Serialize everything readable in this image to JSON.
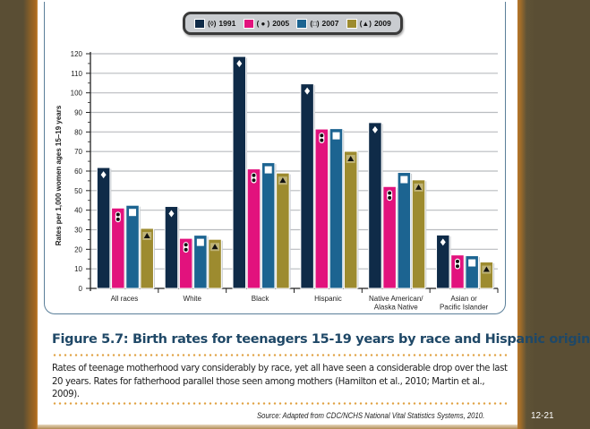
{
  "legend": [
    {
      "marker": "◊",
      "label": "1991",
      "color": "#0f2b48"
    },
    {
      "marker": "⁚",
      "label": "2005",
      "color": "#e2127d"
    },
    {
      "marker": "□",
      "label": "2007",
      "color": "#1c6491"
    },
    {
      "marker": "▲",
      "label": "2009",
      "color": "#9d8b2f"
    }
  ],
  "chart_data": {
    "type": "bar",
    "title": "",
    "xlabel": "",
    "ylabel": "Rates per 1,000 women ages 15–19 years",
    "ylim": [
      0,
      120
    ],
    "yticks": [
      0,
      10,
      20,
      30,
      40,
      50,
      60,
      70,
      80,
      90,
      100,
      110,
      120
    ],
    "grid": true,
    "legend_position": "top-center",
    "categories": [
      "All races",
      "White",
      "Black",
      "Hispanic",
      "Native American/\nAlaska Native",
      "Asian or\nPacific Islander"
    ],
    "series": [
      {
        "name": "1991",
        "marker": "diamond",
        "color": "#0f2b48",
        "values": [
          61.8,
          41.9,
          118.6,
          104.6,
          84.8,
          27.3
        ]
      },
      {
        "name": "2005",
        "marker": "two-dots",
        "color": "#e2127d",
        "values": [
          41.1,
          25.6,
          61.1,
          81.5,
          52.1,
          17.1
        ]
      },
      {
        "name": "2007",
        "marker": "square",
        "color": "#1c6491",
        "values": [
          42.5,
          27.2,
          64.3,
          81.7,
          59.3,
          16.7
        ]
      },
      {
        "name": "2009",
        "marker": "triangle",
        "color": "#9d8b2f",
        "values": [
          30.7,
          25.1,
          59.0,
          70.1,
          55.5,
          13.5
        ]
      }
    ]
  },
  "figure": {
    "title": "Figure 5.7: Birth rates for teenagers 15-19 years by race and Hispanic origin",
    "caption": "Rates of teenage motherhood vary considerably by race, yet all have seen a considerable drop over the last 20 years. Rates for fatherhood parallel those seen among mothers (Hamilton et al., 2010; Martin et al., 2009).",
    "source": "Source: Adapted from CDC/NCHS National Vital Statistics Systems, 2010."
  },
  "slide_number": "12-21"
}
